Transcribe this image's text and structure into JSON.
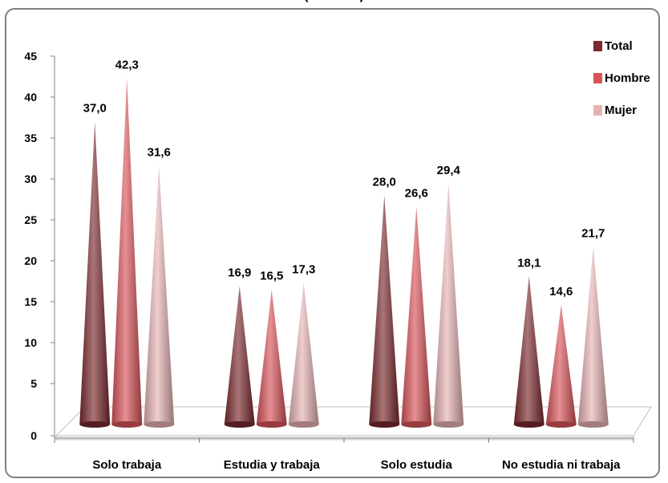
{
  "title_fragment": "(…………)",
  "chart_data": {
    "type": "bar",
    "categories": [
      "Solo trabaja",
      "Estudia y trabaja",
      "Solo estudia",
      "No estudia ni trabaja"
    ],
    "series": [
      {
        "name": "Total",
        "values": [
          37.0,
          16.9,
          28.0,
          18.1
        ],
        "labels": [
          "37,0",
          "16,9",
          "28,0",
          "18,1"
        ],
        "color": "#7b2a2e"
      },
      {
        "name": "Hombre",
        "values": [
          42.3,
          16.5,
          26.6,
          14.6
        ],
        "labels": [
          "42,3",
          "16,5",
          "26,6",
          "14,6"
        ],
        "color": "#d9545a"
      },
      {
        "name": "Mujer",
        "values": [
          31.6,
          17.3,
          29.4,
          21.7
        ],
        "labels": [
          "31,6",
          "17,3",
          "29,4",
          "21,7"
        ],
        "color": "#e6b3b5"
      }
    ],
    "ylim": [
      0,
      45
    ],
    "yticks": [
      "0",
      "5",
      "10",
      "15",
      "20",
      "25",
      "30",
      "35",
      "40",
      "45"
    ],
    "legend_position": "top-right",
    "shape": "cone",
    "grid": false
  }
}
